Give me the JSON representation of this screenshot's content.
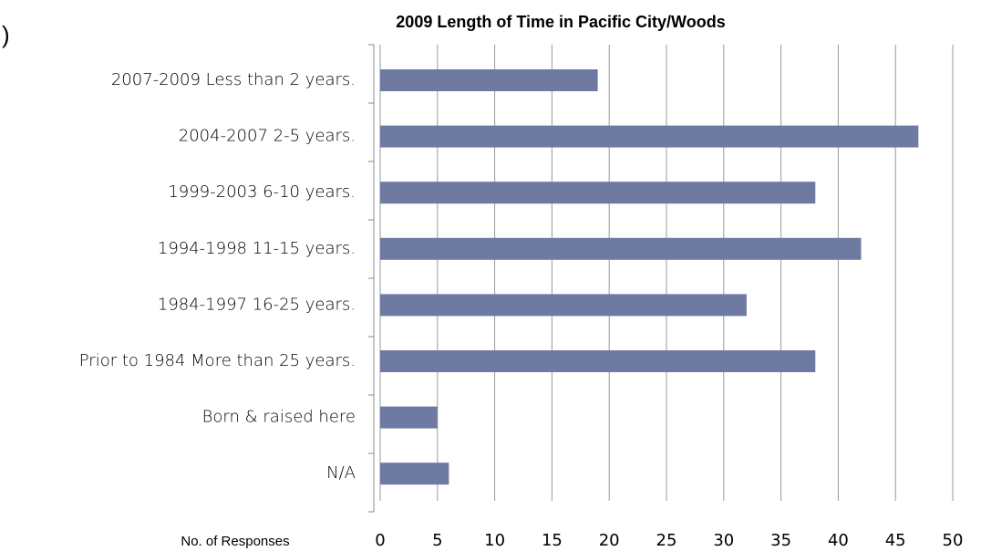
{
  "chart_data": {
    "type": "bar",
    "orientation": "horizontal",
    "title": "2009 Length of Time in Pacific City/Woods",
    "xlabel": "No. of  Responses",
    "annotation": ")",
    "categories": [
      "2007-2009  Less than 2 years.",
      "2004-2007  2-5 years.",
      "1999-2003  6-10 years.",
      "1994-1998  11-15 years.",
      "1984-1997  16-25 years.",
      "Prior to 1984  More than 25 years.",
      "Born & raised here",
      "N/A"
    ],
    "values": [
      19,
      47,
      38,
      42,
      32,
      38,
      5,
      6
    ],
    "color": "#6f7aa3",
    "xlim": [
      0,
      50
    ],
    "xticks": [
      0,
      5,
      10,
      15,
      20,
      25,
      30,
      35,
      40,
      45,
      50
    ],
    "grid": true
  }
}
